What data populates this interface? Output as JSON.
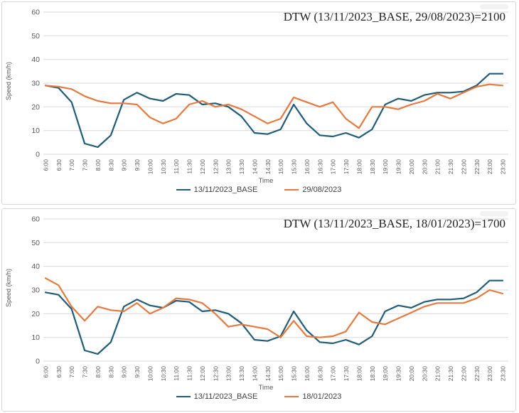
{
  "colors": {
    "base_series": "#1f5c78",
    "compare_series": "#e5793e",
    "grid": "#d9d9d9",
    "axis_text": "#595959",
    "title_text": "#1f1f1f",
    "legend_text": "#404040",
    "panel_border": "#d6d6d6"
  },
  "chart_data": [
    {
      "type": "line",
      "title": "DTW (13/11/2023_BASE, 29/08/2023)=2100",
      "xlabel": "Time",
      "ylabel": "Speed (km/h)",
      "ylim": [
        0,
        60
      ],
      "yticks": [
        0,
        10,
        20,
        30,
        40,
        50,
        60
      ],
      "grid": "horizontal",
      "legend_position": "bottom",
      "categories": [
        "6:00",
        "6:30",
        "7:00",
        "7:30",
        "8:00",
        "8:30",
        "9:00",
        "9:30",
        "10:00",
        "10:30",
        "11:00",
        "11:30",
        "12:00",
        "12:30",
        "13:00",
        "13:30",
        "14:00",
        "14:30",
        "15:00",
        "15:30",
        "16:00",
        "16:30",
        "17:00",
        "17:30",
        "18:00",
        "18:30",
        "19:00",
        "19:30",
        "20:00",
        "20:30",
        "21:00",
        "21:30",
        "22:00",
        "22:30",
        "23:00",
        "23:30"
      ],
      "series": [
        {
          "name": "13/11/2023_BASE",
          "color": "#1f5c78",
          "values": [
            29,
            28,
            22,
            4.5,
            3,
            8,
            23,
            26,
            23.5,
            22.5,
            25.5,
            25,
            21,
            21.5,
            20,
            16,
            9,
            8.5,
            10.5,
            21,
            13,
            8,
            7.5,
            9,
            7,
            10.5,
            21,
            23.5,
            22.5,
            25,
            26,
            26,
            26.5,
            29,
            34,
            34
          ]
        },
        {
          "name": "29/08/2023",
          "color": "#e5793e",
          "values": [
            29,
            28.5,
            27.5,
            24.5,
            22.5,
            21.5,
            21.5,
            21,
            15.5,
            13,
            15,
            21,
            22.5,
            20,
            21,
            19,
            16,
            13,
            15,
            24,
            22,
            20,
            22,
            15,
            11,
            20,
            20,
            19,
            21,
            22.5,
            25.5,
            23.5,
            26,
            28.5,
            29.5,
            29
          ]
        }
      ]
    },
    {
      "type": "line",
      "title": "DTW (13/11/2023_BASE, 18/01/2023)=1700",
      "xlabel": "Time",
      "ylabel": "Speed (km/h)",
      "ylim": [
        0,
        60
      ],
      "yticks": [
        0,
        10,
        20,
        30,
        40,
        50,
        60
      ],
      "grid": "horizontal",
      "legend_position": "bottom",
      "categories": [
        "6:00",
        "6:30",
        "7:00",
        "7:30",
        "8:00",
        "8:30",
        "9:00",
        "9:30",
        "10:00",
        "10:30",
        "11:00",
        "11:30",
        "12:00",
        "12:30",
        "13:00",
        "13:30",
        "14:00",
        "14:30",
        "15:00",
        "15:30",
        "16:00",
        "16:30",
        "17:00",
        "17:30",
        "18:00",
        "18:30",
        "19:00",
        "19:30",
        "20:00",
        "20:30",
        "21:00",
        "21:30",
        "22:00",
        "22:30",
        "23:00",
        "23:30"
      ],
      "series": [
        {
          "name": "13/11/2023_BASE",
          "color": "#1f5c78",
          "values": [
            29,
            28,
            22,
            4.5,
            3,
            8,
            23,
            26,
            23.5,
            22.5,
            25.5,
            25,
            21,
            21.5,
            20,
            16,
            9,
            8.5,
            10.5,
            21,
            13,
            8,
            7.5,
            9,
            7,
            10.5,
            21,
            23.5,
            22.5,
            25,
            26,
            26,
            26.5,
            29,
            34,
            34
          ]
        },
        {
          "name": "18/01/2023",
          "color": "#e5793e",
          "values": [
            35,
            32,
            23,
            17,
            23,
            21.5,
            21,
            24.5,
            20,
            22.5,
            26.5,
            26,
            24.5,
            20,
            14.5,
            15.5,
            14.5,
            13.5,
            10,
            17,
            10.5,
            10,
            10.5,
            12.5,
            20.5,
            16.5,
            15.5,
            18,
            20.5,
            23,
            24.5,
            24.5,
            24.5,
            26.5,
            30,
            28.5
          ]
        }
      ]
    }
  ]
}
